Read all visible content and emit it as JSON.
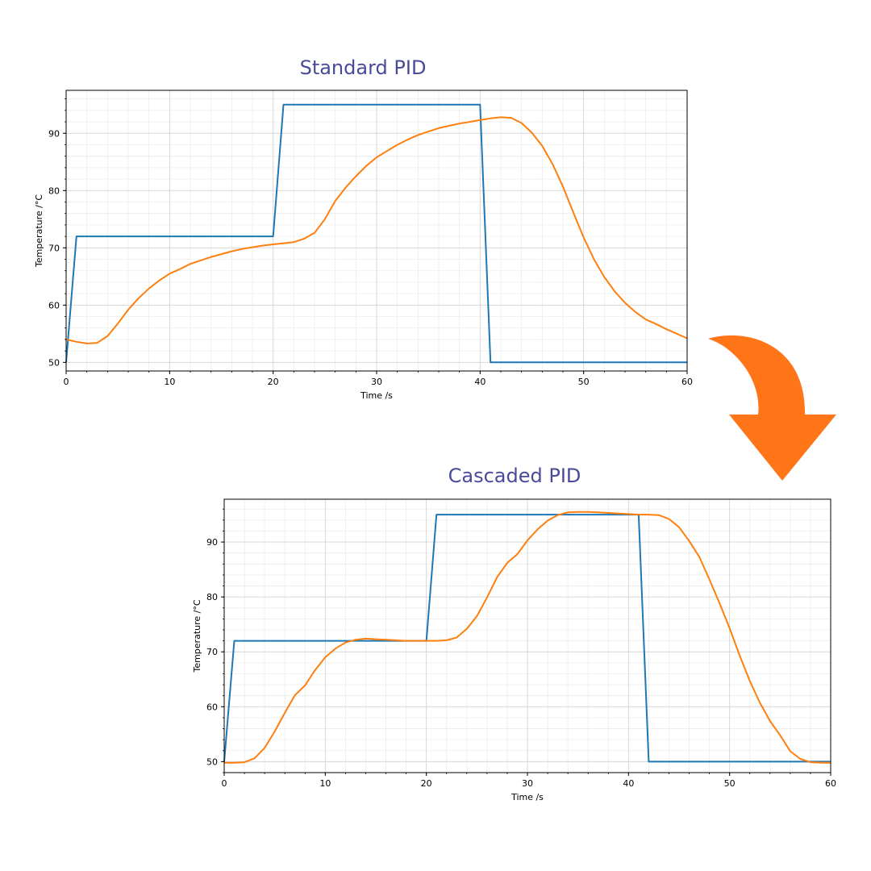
{
  "colors": {
    "setpoint": "#1f77b4",
    "response": "#ff7f0e",
    "title": "#4a4a9a",
    "arrow": "#ff7518"
  },
  "arrow_icon": "curved-down-arrow",
  "chart_data": [
    {
      "type": "line",
      "title": "Standard PID",
      "xlabel": "Time /s",
      "ylabel": "Temperature /°C",
      "xlim": [
        0,
        60
      ],
      "ylim": [
        48.5,
        97.5
      ],
      "xticks": [
        0,
        10,
        20,
        30,
        40,
        50,
        60
      ],
      "yticks": [
        50,
        60,
        70,
        80,
        90
      ],
      "grid": true,
      "series": [
        {
          "color": "#1f77b4",
          "x": [
            0,
            1,
            20,
            21,
            40,
            41,
            60
          ],
          "y": [
            50,
            72,
            72,
            95,
            95,
            50,
            50
          ]
        },
        {
          "color": "#ff7f0e",
          "x": [
            0,
            1,
            2,
            3,
            4,
            5,
            6,
            7,
            8,
            9,
            10,
            11,
            12,
            13,
            14,
            15,
            16,
            17,
            18,
            19,
            20,
            21,
            22,
            23,
            24,
            25,
            26,
            27,
            28,
            29,
            30,
            31,
            32,
            33,
            34,
            35,
            36,
            37,
            38,
            39,
            40,
            41,
            42,
            43,
            44,
            45,
            46,
            47,
            48,
            49,
            50,
            51,
            52,
            53,
            54,
            55,
            56,
            57,
            58,
            59,
            60
          ],
          "y": [
            54,
            53.6,
            53.3,
            53.4,
            54.6,
            56.8,
            59.2,
            61.2,
            62.9,
            64.3,
            65.5,
            66.3,
            67.2,
            67.8,
            68.4,
            68.9,
            69.4,
            69.8,
            70.1,
            70.4,
            70.6,
            70.8,
            71.0,
            71.6,
            72.6,
            75.0,
            78.2,
            80.5,
            82.5,
            84.3,
            85.8,
            86.9,
            88.0,
            88.9,
            89.7,
            90.3,
            90.9,
            91.3,
            91.7,
            92.0,
            92.3,
            92.6,
            92.8,
            92.7,
            91.8,
            90.1,
            87.8,
            84.6,
            80.7,
            76.2,
            71.8,
            68.0,
            64.9,
            62.4,
            60.4,
            58.8,
            57.5,
            56.7,
            55.8,
            55.0,
            54.2
          ]
        }
      ]
    },
    {
      "type": "line",
      "title": "Cascaded PID",
      "xlabel": "Time /s",
      "ylabel": "Temperature /°C",
      "xlim": [
        0,
        60
      ],
      "ylim": [
        48,
        97.8
      ],
      "xticks": [
        0,
        10,
        20,
        30,
        40,
        50,
        60
      ],
      "yticks": [
        50,
        60,
        70,
        80,
        90
      ],
      "grid": true,
      "series": [
        {
          "color": "#1f77b4",
          "x": [
            0,
            1,
            20,
            21,
            41,
            42,
            60
          ],
          "y": [
            50,
            72,
            72,
            95,
            95,
            50,
            50
          ]
        },
        {
          "color": "#ff7f0e",
          "x": [
            0,
            1,
            2,
            3,
            4,
            5,
            6,
            7,
            8,
            9,
            10,
            11,
            12,
            13,
            14,
            15,
            16,
            17,
            18,
            19,
            20,
            21,
            22,
            23,
            24,
            25,
            26,
            27,
            28,
            29,
            30,
            31,
            32,
            33,
            34,
            35,
            36,
            37,
            38,
            39,
            40,
            41,
            42,
            43,
            44,
            45,
            46,
            47,
            48,
            49,
            50,
            51,
            52,
            53,
            54,
            55,
            56,
            57,
            58,
            59,
            60
          ],
          "y": [
            49.8,
            49.8,
            49.9,
            50.6,
            52.5,
            55.5,
            58.9,
            62.1,
            63.9,
            66.7,
            69.0,
            70.6,
            71.7,
            72.2,
            72.4,
            72.3,
            72.2,
            72.1,
            72.0,
            72.0,
            72.0,
            72.0,
            72.1,
            72.6,
            74.2,
            76.5,
            79.9,
            83.6,
            86.2,
            87.8,
            90.3,
            92.3,
            93.9,
            94.9,
            95.4,
            95.5,
            95.5,
            95.4,
            95.3,
            95.2,
            95.1,
            95.0,
            95.0,
            94.9,
            94.2,
            92.7,
            90.2,
            87.3,
            83.2,
            78.9,
            74.3,
            69.3,
            64.7,
            60.7,
            57.4,
            54.8,
            51.9,
            50.5,
            49.9,
            49.8,
            49.8
          ]
        }
      ]
    }
  ]
}
